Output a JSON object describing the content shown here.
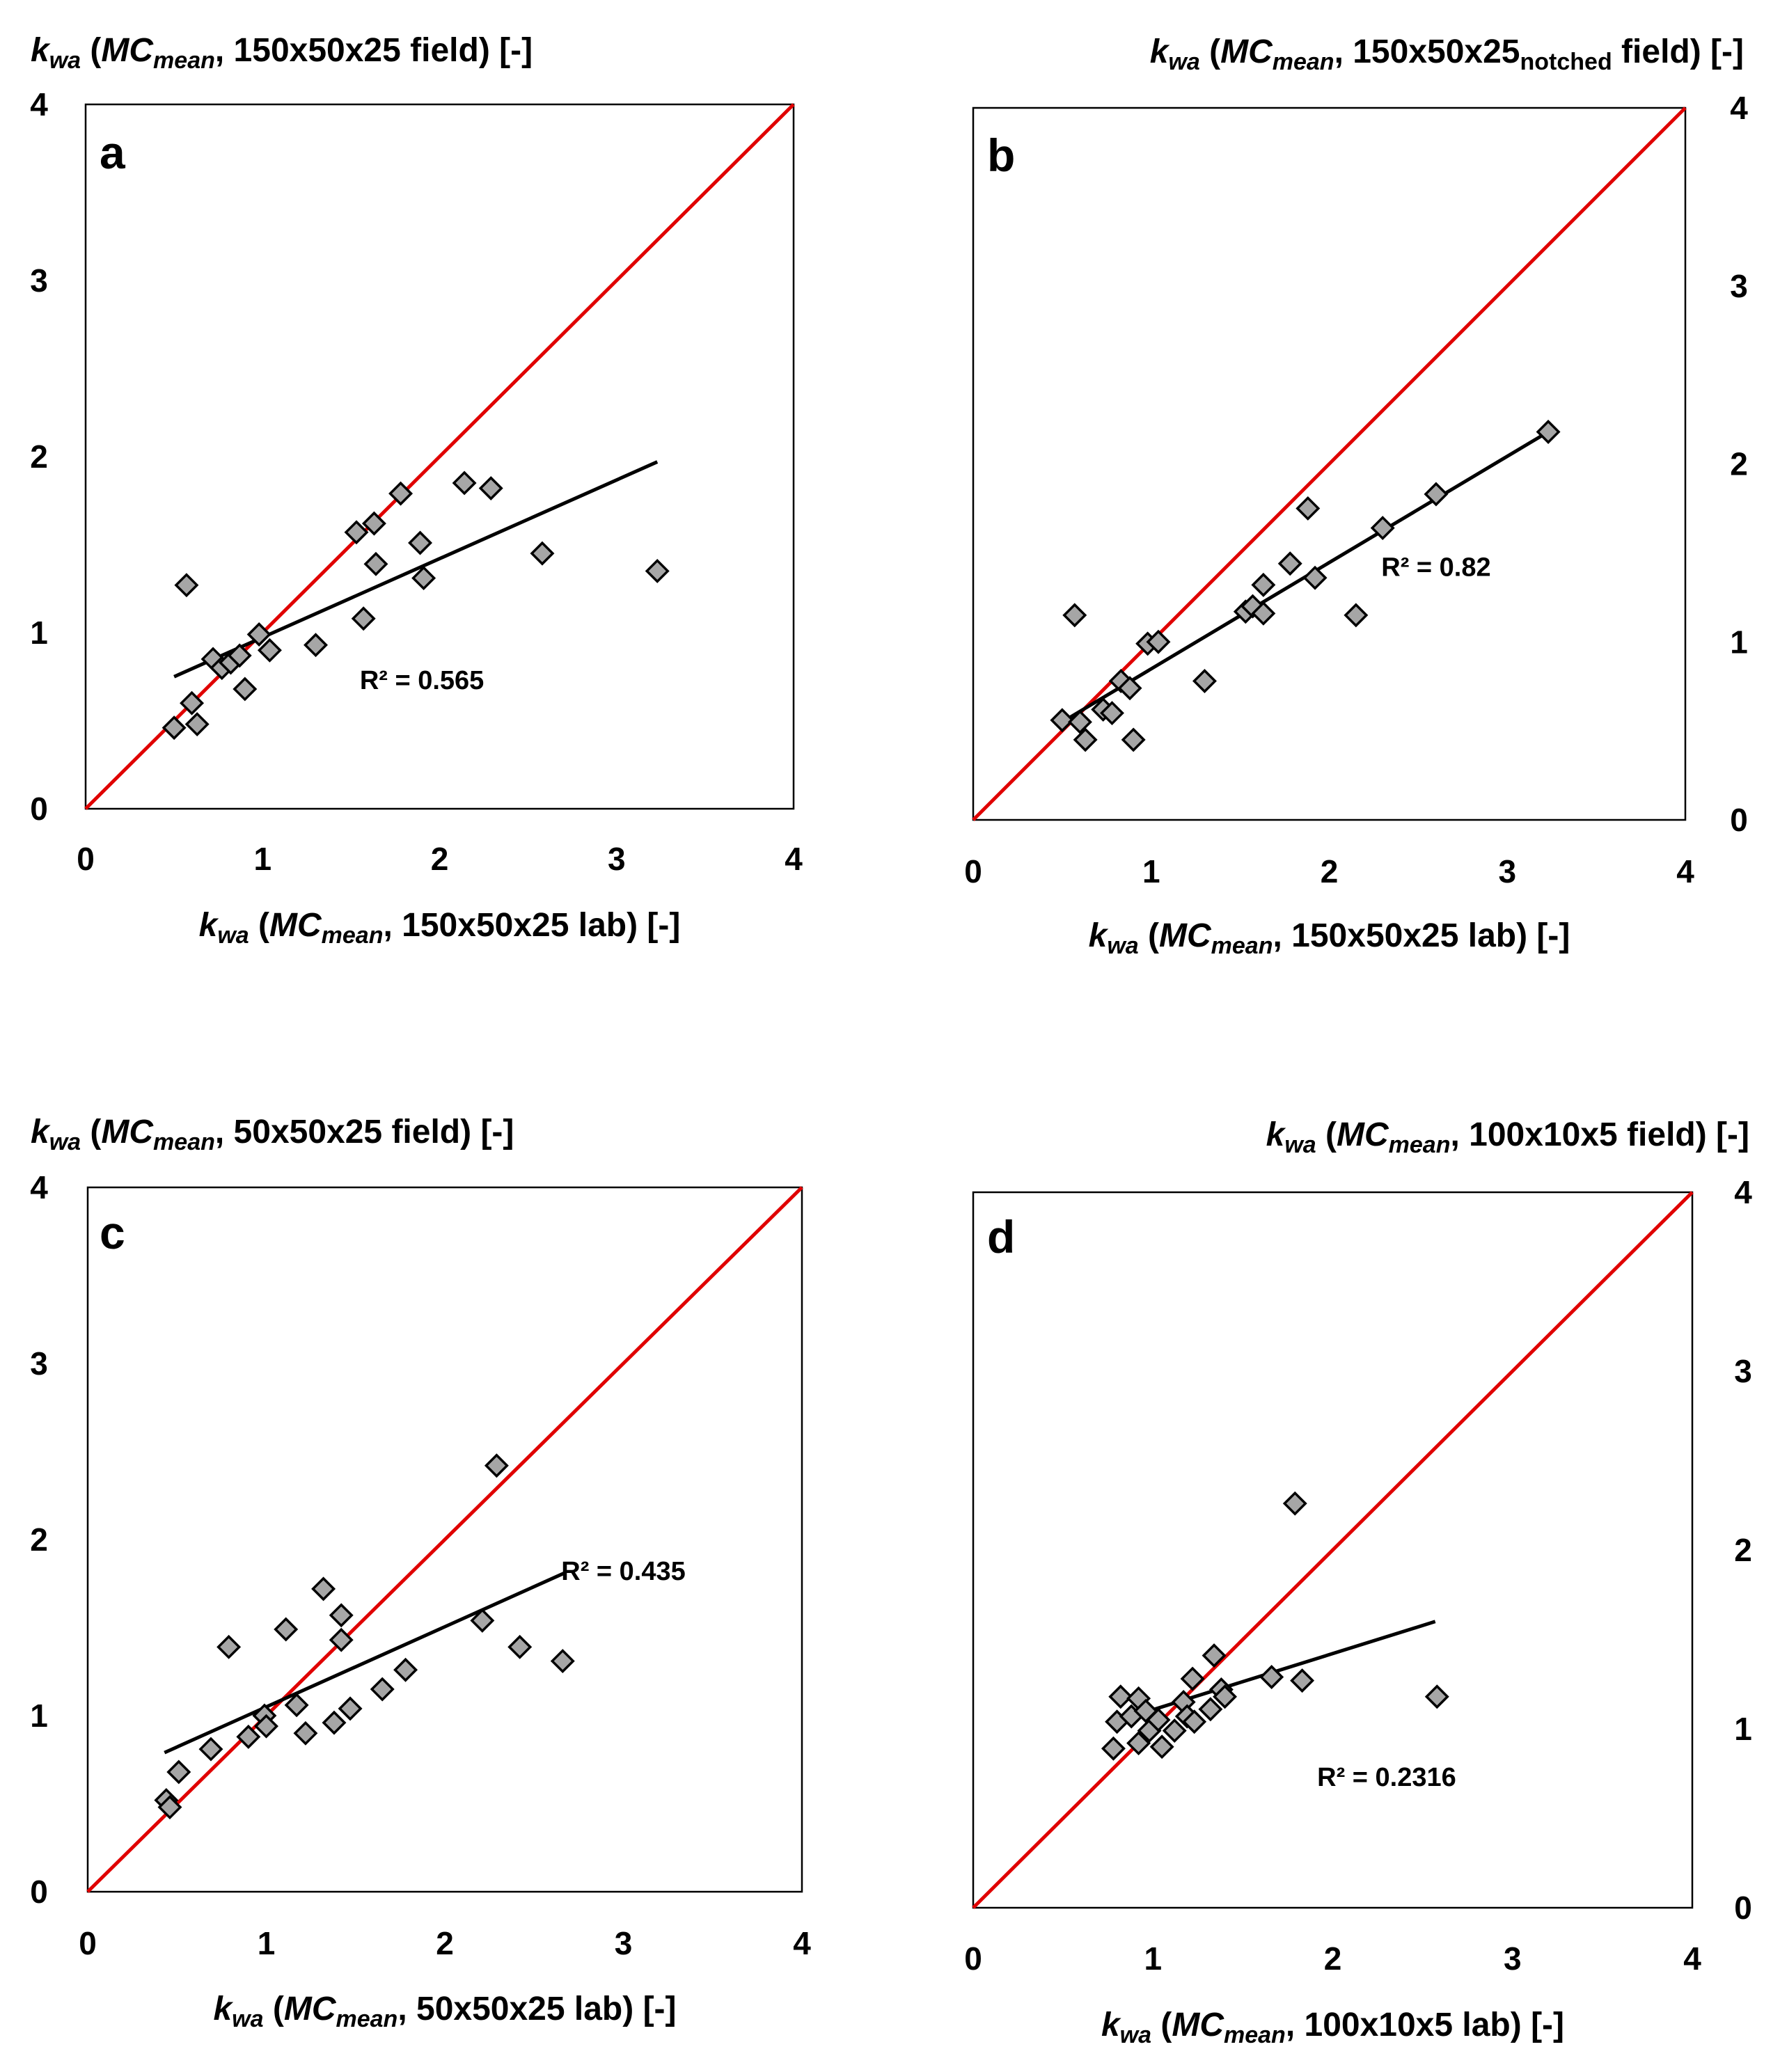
{
  "figure": {
    "description_free": true
  },
  "chart_data": [
    {
      "type": "scatter",
      "panel": "a",
      "xlabel": {
        "k": "k",
        "k_sub": "wa",
        "open": " (",
        "mc": "MC",
        "mc_sub": "mean",
        "rest": ", 150x50x25 lab) [-]",
        "rest_sub": "",
        "rest_after": ""
      },
      "ylabel": {
        "k": "k",
        "k_sub": "wa",
        "open": " (",
        "mc": "MC",
        "mc_sub": "mean",
        "rest": ", 150x50x25 field) [-]",
        "rest_sub": "",
        "rest_after": ""
      },
      "y_axis_side": "left",
      "xlim": [
        0,
        4
      ],
      "ylim": [
        0,
        4
      ],
      "x_ticks": [
        "0",
        "1",
        "2",
        "3",
        "4"
      ],
      "y_ticks": [
        "0",
        "1",
        "2",
        "3",
        "4"
      ],
      "r2_label": "R² = 0.565",
      "r2_at": [
        1.9,
        0.68
      ],
      "trend": {
        "x1": 0.5,
        "y1": 0.75,
        "x2": 3.23,
        "y2": 1.97
      },
      "identity_line": {
        "x1": 0,
        "y1": 0,
        "x2": 4,
        "y2": 4,
        "color": "#e00000"
      },
      "points": [
        [
          0.57,
          1.27
        ],
        [
          0.5,
          0.46
        ],
        [
          0.6,
          0.6
        ],
        [
          0.63,
          0.48
        ],
        [
          0.72,
          0.85
        ],
        [
          0.77,
          0.8
        ],
        [
          0.82,
          0.83
        ],
        [
          0.87,
          0.87
        ],
        [
          0.9,
          0.68
        ],
        [
          0.98,
          0.99
        ],
        [
          1.04,
          0.9
        ],
        [
          1.3,
          0.93
        ],
        [
          1.53,
          1.57
        ],
        [
          1.57,
          1.08
        ],
        [
          1.63,
          1.62
        ],
        [
          1.64,
          1.39
        ],
        [
          1.78,
          1.79
        ],
        [
          1.89,
          1.51
        ],
        [
          1.91,
          1.31
        ],
        [
          2.14,
          1.85
        ],
        [
          2.29,
          1.82
        ],
        [
          2.58,
          1.45
        ],
        [
          3.23,
          1.35
        ]
      ]
    },
    {
      "type": "scatter",
      "panel": "b",
      "xlabel": {
        "k": "k",
        "k_sub": "wa",
        "open": " (",
        "mc": "MC",
        "mc_sub": "mean",
        "rest": ", 150x50x25 lab) [-]",
        "rest_sub": "",
        "rest_after": ""
      },
      "ylabel": {
        "k": "k",
        "k_sub": "wa",
        "open": " (",
        "mc": "MC",
        "mc_sub": "mean",
        "rest": ", 150x50x25",
        "rest_sub": "notched",
        "rest_after": " field) [-]"
      },
      "y_axis_side": "right",
      "xlim": [
        0,
        4
      ],
      "ylim": [
        0,
        4
      ],
      "x_ticks": [
        "0",
        "1",
        "2",
        "3",
        "4"
      ],
      "y_ticks": [
        "0",
        "1",
        "2",
        "3",
        "4"
      ],
      "r2_label": "R² = 0.82",
      "r2_at": [
        2.6,
        1.37
      ],
      "trend": {
        "x1": 0.5,
        "y1": 0.55,
        "x2": 3.23,
        "y2": 2.18
      },
      "identity_line": {
        "x1": 0,
        "y1": 0,
        "x2": 4,
        "y2": 4,
        "color": "#e00000"
      },
      "points": [
        [
          0.5,
          0.56
        ],
        [
          0.57,
          1.15
        ],
        [
          0.6,
          0.55
        ],
        [
          0.63,
          0.45
        ],
        [
          0.73,
          0.62
        ],
        [
          0.78,
          0.6
        ],
        [
          0.83,
          0.78
        ],
        [
          0.88,
          0.74
        ],
        [
          0.9,
          0.45
        ],
        [
          0.98,
          0.99
        ],
        [
          1.04,
          1.0
        ],
        [
          1.3,
          0.78
        ],
        [
          1.53,
          1.17
        ],
        [
          1.57,
          1.2
        ],
        [
          1.63,
          1.16
        ],
        [
          1.63,
          1.32
        ],
        [
          1.78,
          1.44
        ],
        [
          1.88,
          1.75
        ],
        [
          1.92,
          1.36
        ],
        [
          2.15,
          1.15
        ],
        [
          2.3,
          1.64
        ],
        [
          2.6,
          1.83
        ],
        [
          3.23,
          2.18
        ]
      ]
    },
    {
      "type": "scatter",
      "panel": "c",
      "xlabel": {
        "k": "k",
        "k_sub": "wa",
        "open": " (",
        "mc": "MC",
        "mc_sub": "mean",
        "rest": ", 50x50x25 lab) [-]",
        "rest_sub": "",
        "rest_after": ""
      },
      "ylabel": {
        "k": "k",
        "k_sub": "wa",
        "open": " (",
        "mc": "MC",
        "mc_sub": "mean",
        "rest": ", 50x50x25 field) [-]",
        "rest_sub": "",
        "rest_after": ""
      },
      "y_axis_side": "left",
      "xlim": [
        0,
        4
      ],
      "ylim": [
        0,
        4
      ],
      "x_ticks": [
        "0",
        "1",
        "2",
        "3",
        "4"
      ],
      "y_ticks": [
        "0",
        "1",
        "2",
        "3",
        "4"
      ],
      "r2_label": "R² = 0.435",
      "r2_at": [
        3.0,
        1.77
      ],
      "trend": {
        "x1": 0.43,
        "y1": 0.79,
        "x2": 2.67,
        "y2": 1.81
      },
      "identity_line": {
        "x1": 0,
        "y1": 0,
        "x2": 4,
        "y2": 4,
        "color": "#e00000"
      },
      "points": [
        [
          0.44,
          0.52
        ],
        [
          0.46,
          0.48
        ],
        [
          0.51,
          0.68
        ],
        [
          0.69,
          0.81
        ],
        [
          0.79,
          1.39
        ],
        [
          0.9,
          0.88
        ],
        [
          0.99,
          1.0
        ],
        [
          1.0,
          0.94
        ],
        [
          1.11,
          1.49
        ],
        [
          1.17,
          1.06
        ],
        [
          1.22,
          0.9
        ],
        [
          1.32,
          1.72
        ],
        [
          1.38,
          0.96
        ],
        [
          1.42,
          1.57
        ],
        [
          1.42,
          1.43
        ],
        [
          1.47,
          1.04
        ],
        [
          1.65,
          1.15
        ],
        [
          1.78,
          1.26
        ],
        [
          2.21,
          1.54
        ],
        [
          2.29,
          2.42
        ],
        [
          2.42,
          1.39
        ],
        [
          2.66,
          1.31
        ]
      ]
    },
    {
      "type": "scatter",
      "panel": "d",
      "xlabel": {
        "k": "k",
        "k_sub": "wa",
        "open": " (",
        "mc": "MC",
        "mc_sub": "mean",
        "rest": ", 100x10x5 lab) [-]",
        "rest_sub": "",
        "rest_after": ""
      },
      "ylabel": {
        "k": "k",
        "k_sub": "wa",
        "open": " (",
        "mc": "MC",
        "mc_sub": "mean",
        "rest": ", 100x10x5 field) [-]",
        "rest_sub": "",
        "rest_after": ""
      },
      "y_axis_side": "right",
      "xlim": [
        0,
        4
      ],
      "ylim": [
        0,
        4
      ],
      "x_ticks": [
        "0",
        "1",
        "2",
        "3",
        "4"
      ],
      "y_ticks": [
        "0",
        "1",
        "2",
        "3",
        "4"
      ],
      "r2_label": "R² = 0.2316",
      "r2_at": [
        2.3,
        0.68
      ],
      "trend": {
        "x1": 0.85,
        "y1": 1.06,
        "x2": 2.57,
        "y2": 1.6
      },
      "identity_line": {
        "x1": 0,
        "y1": 0,
        "x2": 4,
        "y2": 4,
        "color": "#e00000"
      },
      "points": [
        [
          0.78,
          0.89
        ],
        [
          0.8,
          1.04
        ],
        [
          0.82,
          1.18
        ],
        [
          0.88,
          1.07
        ],
        [
          0.92,
          1.17
        ],
        [
          0.92,
          0.92
        ],
        [
          0.96,
          1.1
        ],
        [
          0.98,
          0.99
        ],
        [
          1.03,
          1.05
        ],
        [
          1.05,
          0.9
        ],
        [
          1.12,
          0.99
        ],
        [
          1.17,
          1.15
        ],
        [
          1.19,
          1.07
        ],
        [
          1.22,
          1.28
        ],
        [
          1.23,
          1.04
        ],
        [
          1.32,
          1.11
        ],
        [
          1.34,
          1.41
        ],
        [
          1.38,
          1.22
        ],
        [
          1.4,
          1.18
        ],
        [
          1.66,
          1.29
        ],
        [
          1.79,
          2.26
        ],
        [
          1.83,
          1.27
        ],
        [
          2.58,
          1.18
        ]
      ]
    }
  ]
}
